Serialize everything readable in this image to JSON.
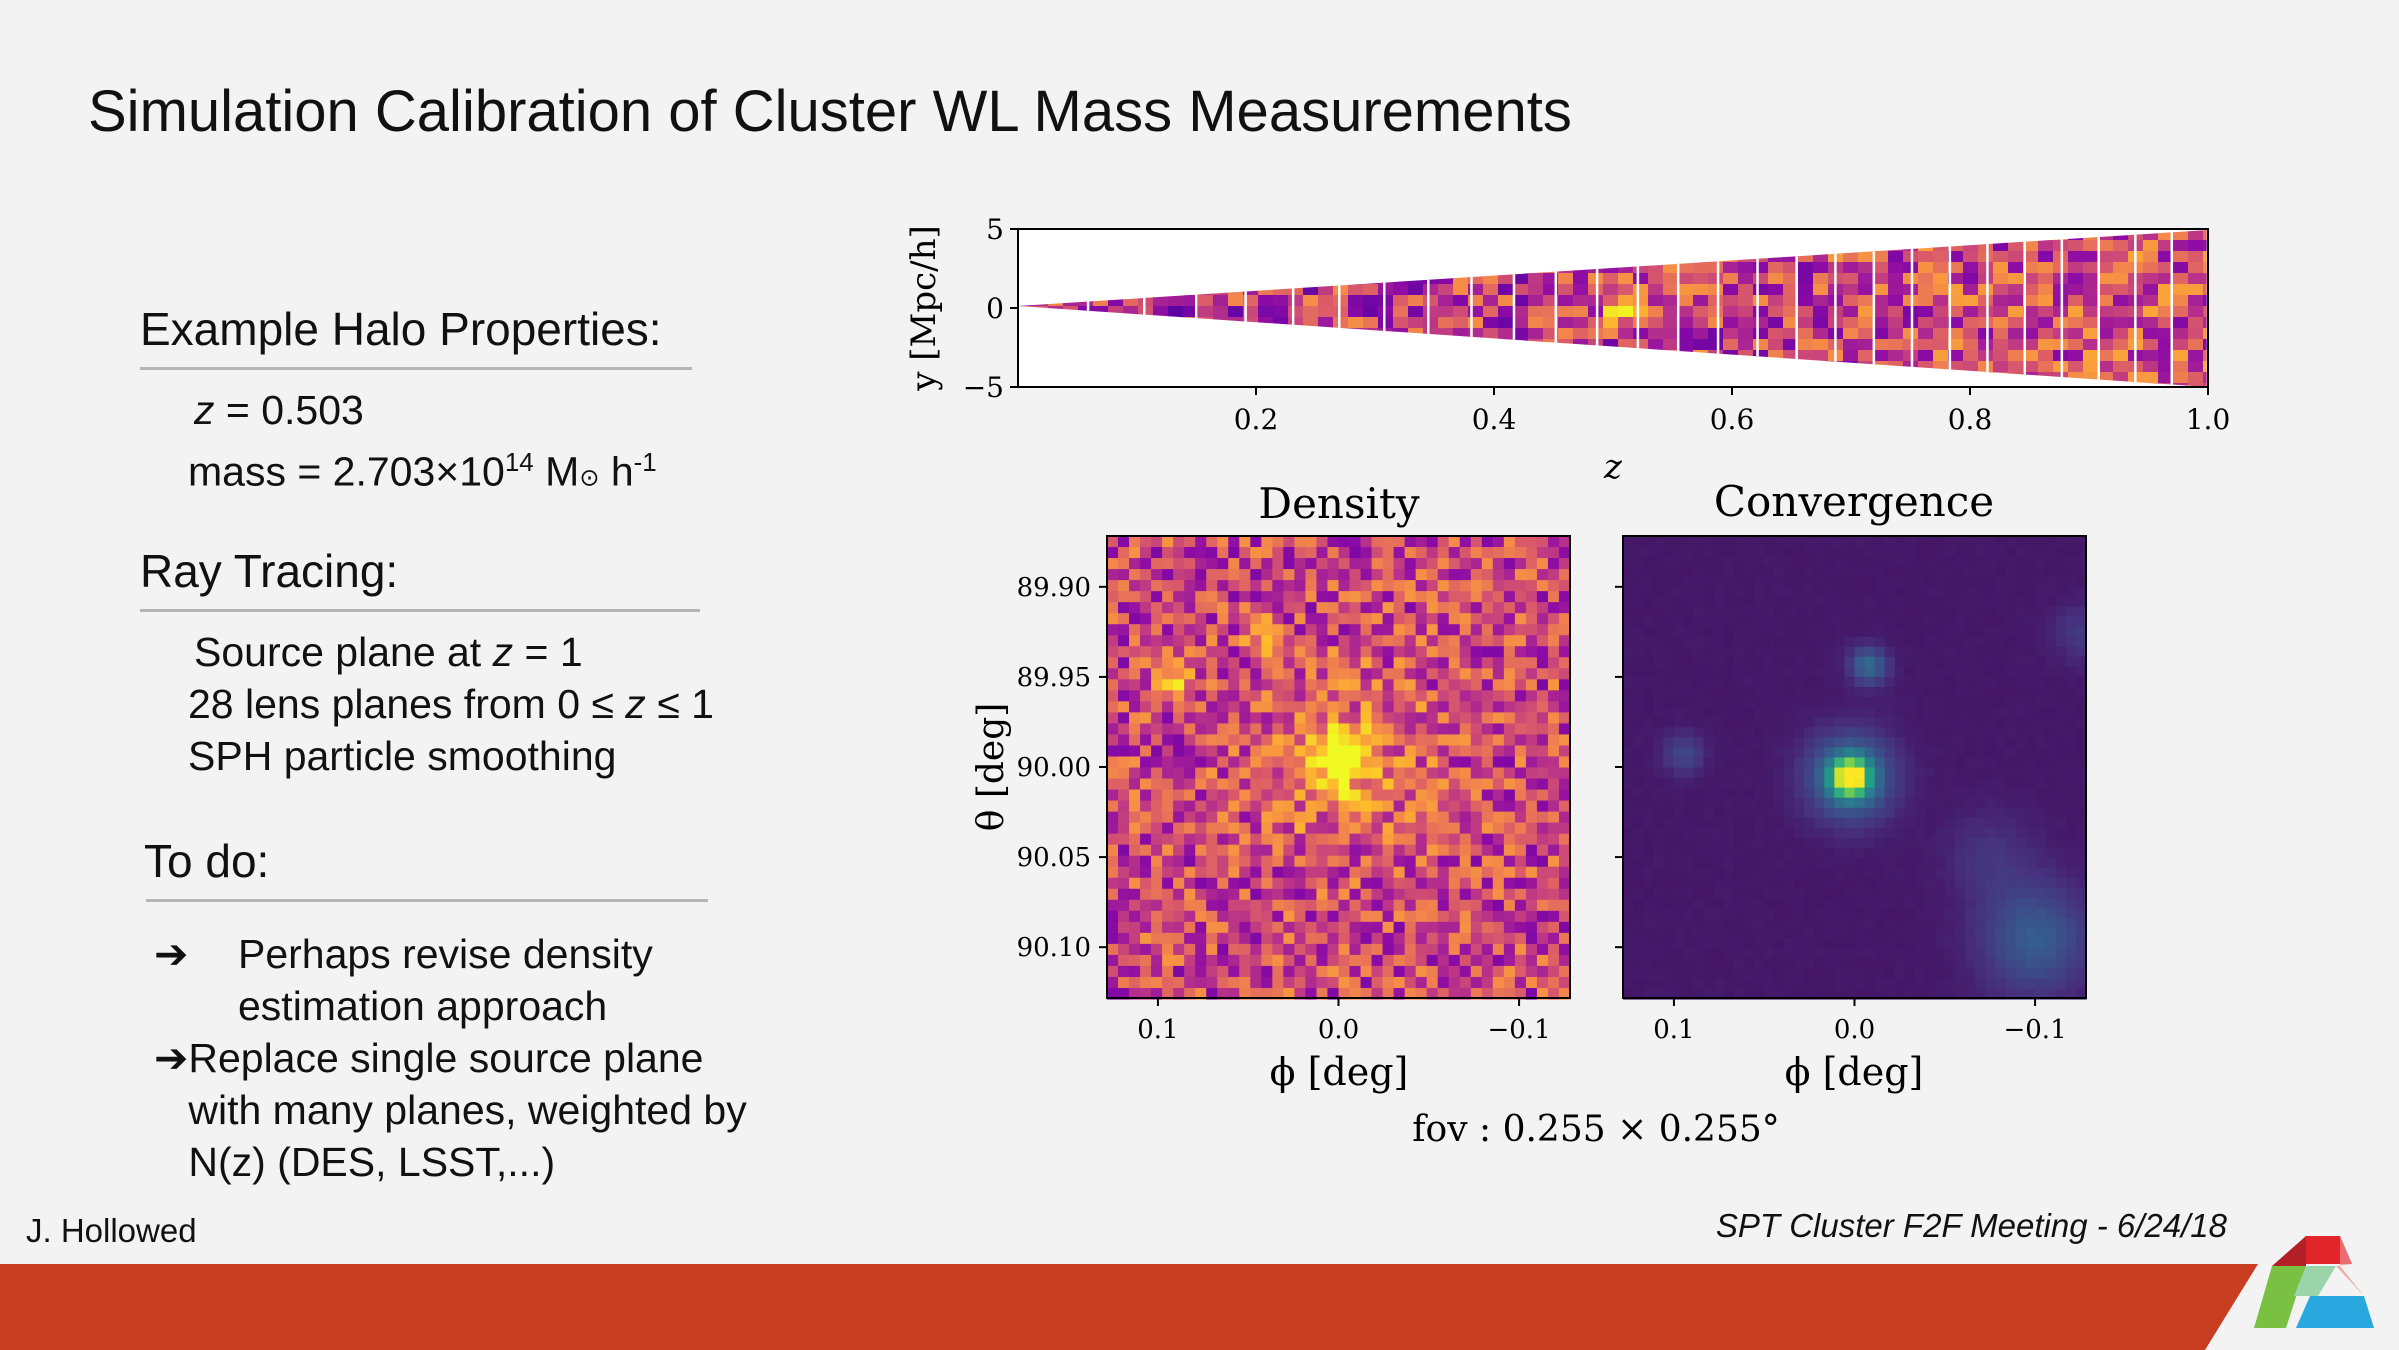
{
  "slide": {
    "title": "Simulation Calibration of Cluster WL Mass Measurements",
    "footer_left": "J. Hollowed",
    "footer_right": "SPT Cluster F2F Meeting - 6/24/18"
  },
  "halo": {
    "heading": "Example Halo Properties:",
    "z_label": "z",
    "z_value": " = 0.503",
    "mass_text": "mass = 2.703×10",
    "mass_exp": "14",
    "mass_unit": " M",
    "sun_symbol": "⊙",
    "h_text": " h",
    "h_exp": "-1"
  },
  "ray": {
    "heading": "Ray Tracing:",
    "line1_prefix": "Source plane at ",
    "line1_var": "z",
    "line1_suffix": " = 1",
    "line2_prefix": "28 lens planes from 0 ≤ ",
    "line2_var": "z",
    "line2_suffix": " ≤ 1",
    "line3": "SPH particle smoothing"
  },
  "todo": {
    "heading": "To do:",
    "arrow": "➔",
    "items": [
      {
        "line1": "Perhaps revise density",
        "line2": "estimation approach",
        "line3": ""
      },
      {
        "line1": "Replace single source plane",
        "line2": "with many planes, weighted by",
        "line3": "N(z) (DES, LSST,...)"
      }
    ]
  },
  "chart_data": [
    {
      "type": "heatmap",
      "panel": "lightcone",
      "title": "",
      "xlabel": "z",
      "ylabel": "y [Mpc/h]",
      "xlim": [
        0.0,
        1.0
      ],
      "ylim": [
        -5,
        5
      ],
      "x_ticks": [
        "0.2",
        "0.4",
        "0.6",
        "0.8",
        "1.0"
      ],
      "y_ticks": [
        "5",
        "0",
        "−5"
      ],
      "colormap": "plasma",
      "lens_planes": 28
    },
    {
      "type": "heatmap",
      "panel": "density",
      "title": "Density",
      "xlabel": "ϕ [deg]",
      "ylabel": "θ [deg]",
      "x_ticks": [
        "0.1",
        "0.0",
        "−0.1"
      ],
      "y_ticks": [
        "89.90",
        "89.95",
        "90.00",
        "90.05",
        "90.10"
      ],
      "colormap": "plasma"
    },
    {
      "type": "heatmap",
      "panel": "convergence",
      "title": "Convergence",
      "xlabel": "ϕ [deg]",
      "ylabel": "",
      "x_ticks": [
        "0.1",
        "0.0",
        "−0.1"
      ],
      "colormap": "viridis"
    }
  ],
  "figure": {
    "fov_caption": "fov : 0.255 × 0.255°"
  },
  "colors": {
    "bar_red": "#c93d20",
    "logo_red": "#e2242b",
    "logo_green": "#7ac143",
    "logo_blue": "#29a8df"
  }
}
